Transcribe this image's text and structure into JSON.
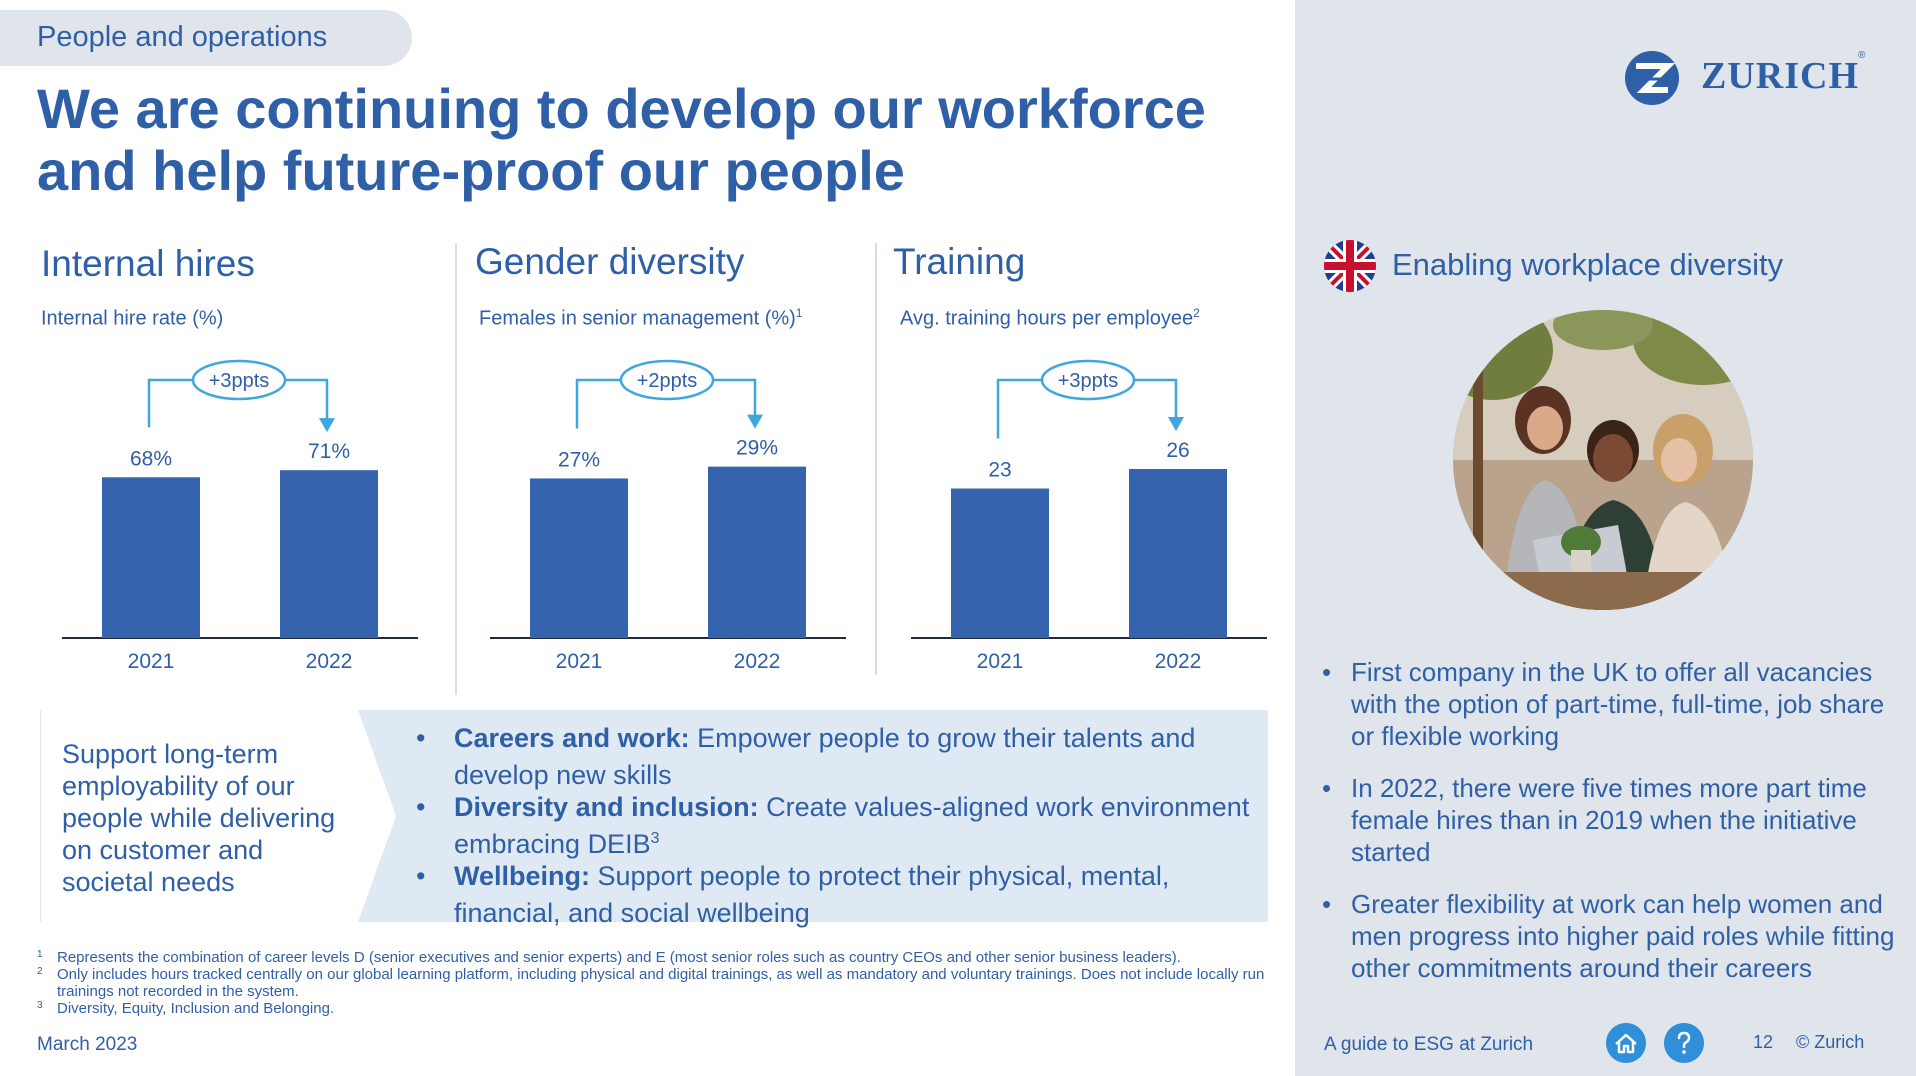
{
  "header": {
    "tag": "People and operations",
    "title": "We are continuing to develop our workforce and help future-proof our people"
  },
  "sections": [
    {
      "title": "Internal hires",
      "subtitle": "Internal hire rate (%)",
      "sup": ""
    },
    {
      "title": "Gender diversity",
      "subtitle": "Females in senior management (%)",
      "sup": "1"
    },
    {
      "title": "Training",
      "subtitle": "Avg. training hours per employee",
      "sup": "2"
    }
  ],
  "chart_data": [
    {
      "type": "bar",
      "title": "Internal hires",
      "ylabel": "Internal hire rate (%)",
      "categories": [
        "2021",
        "2022"
      ],
      "values": [
        68,
        71
      ],
      "labels": [
        "68%",
        "71%"
      ],
      "change_label": "+3ppts",
      "ylim": [
        0,
        110
      ]
    },
    {
      "type": "bar",
      "title": "Gender diversity",
      "ylabel": "Females in senior management (%)",
      "categories": [
        "2021",
        "2022"
      ],
      "values": [
        27,
        29
      ],
      "labels": [
        "27%",
        "29%"
      ],
      "change_label": "+2ppts",
      "ylim": [
        0,
        44
      ]
    },
    {
      "type": "bar",
      "title": "Training",
      "ylabel": "Avg. training hours per employee",
      "categories": [
        "2021",
        "2022"
      ],
      "values": [
        23,
        26
      ],
      "labels": [
        "23",
        "26"
      ],
      "change_label": "+3ppts",
      "ylim": [
        0,
        40
      ]
    }
  ],
  "strip": {
    "left_text": "Support long-term employability of our people while delivering on customer and societal needs",
    "bullet_char": "•",
    "items": [
      {
        "bold": "Careers and work:",
        "text": " Empower people to grow their talents and develop new skills",
        "sup": ""
      },
      {
        "bold": "Diversity and inclusion:",
        "text": " Create values-aligned work environment embracing DEIB",
        "sup": "3"
      },
      {
        "bold": "Wellbeing:",
        "text": " Support people to protect their physical, mental, financial, and social wellbeing",
        "sup": ""
      }
    ]
  },
  "footnotes": [
    {
      "num": "1",
      "text": "Represents the combination of career levels D (senior executives and senior experts) and E (most senior roles such as country CEOs and other senior business leaders)."
    },
    {
      "num": "2",
      "text": "Only includes hours tracked centrally on our global learning platform, including physical and digital trainings, as well as mandatory and voluntary trainings. Does not include locally run trainings not recorded in the system."
    },
    {
      "num": "3",
      "text": "Diversity, Equity, Inclusion and Belonging."
    }
  ],
  "footer": {
    "date": "March 2023",
    "guide": "A guide to ESG at Zurich",
    "page": "12",
    "copyright": "© Zurich"
  },
  "right_panel": {
    "logo_text": "ZURICH",
    "logo_reg": "®",
    "title": "Enabling workplace diversity",
    "bullet_char": "•",
    "bullets": [
      "First company in the UK to offer all vacancies with the option of part-time, full-time, job share or flexible working",
      "In 2022, there were five times more part time female hires than in 2019 when the initiative started",
      "Greater flexibility at work can help women and men progress into higher paid roles while fitting other commitments around their careers"
    ]
  },
  "colors": {
    "primary": "#2f5fa7",
    "bar": "#3563ad",
    "accent": "#3fa6de",
    "panel": "#dfe5ea",
    "strip": "#dfe9f4"
  }
}
